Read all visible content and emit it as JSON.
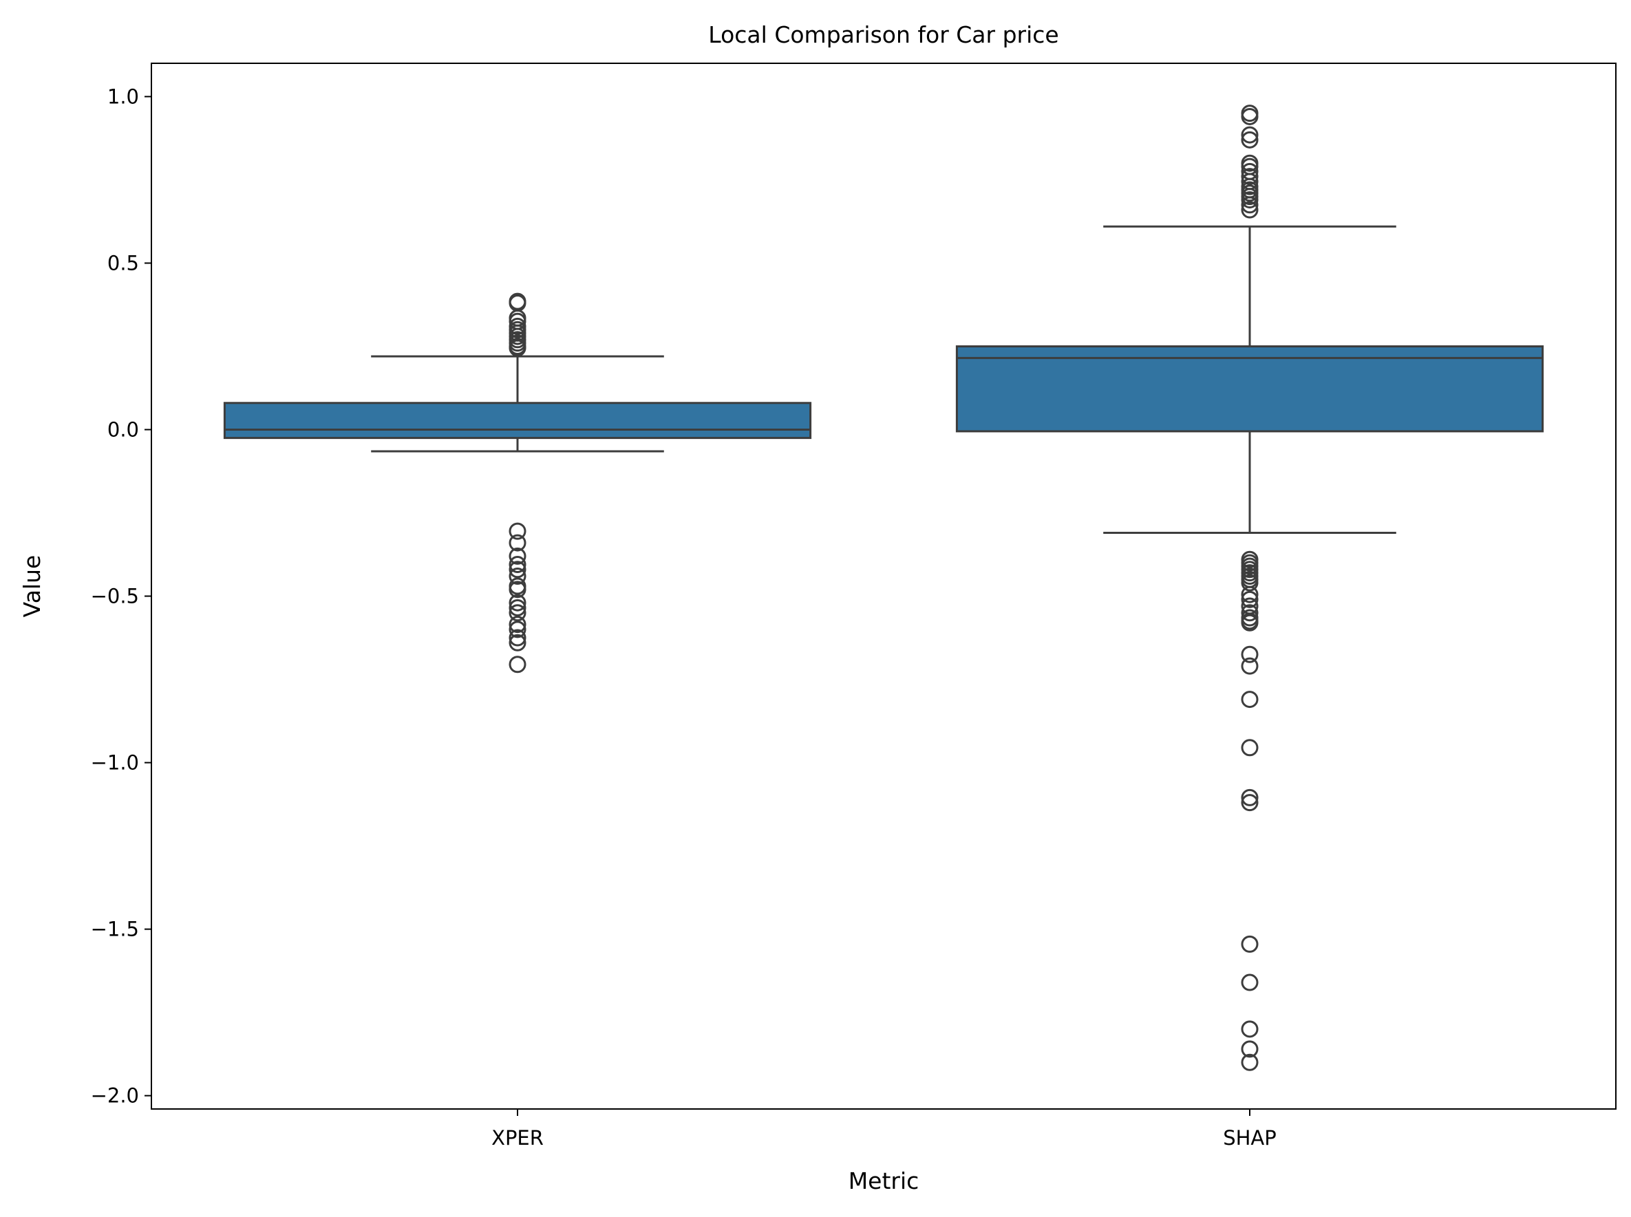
{
  "chart_data": {
    "type": "box",
    "title": "Local Comparison for Car price",
    "xlabel": "Metric",
    "ylabel": "Value",
    "categories": [
      "XPER",
      "SHAP"
    ],
    "ylim": [
      -2.04,
      1.1
    ],
    "yticks": [
      1.0,
      0.5,
      0.0,
      -0.5,
      -1.0,
      -1.5,
      -2.0
    ],
    "ytick_labels": [
      "1.0",
      "0.5",
      "0.0",
      "−0.5",
      "−1.0",
      "−1.5",
      "−2.0"
    ],
    "grid": false,
    "box_color": "#3274a1",
    "line_color": "#3d3d3d",
    "boxes": [
      {
        "category": "XPER",
        "whisker_low": -0.065,
        "q1": -0.025,
        "median": 0.0,
        "q3": 0.08,
        "whisker_high": 0.22,
        "fliers": [
          0.385,
          0.38,
          0.335,
          0.325,
          0.31,
          0.3,
          0.29,
          0.28,
          0.27,
          0.26,
          0.25,
          0.245,
          -0.305,
          -0.34,
          -0.38,
          -0.405,
          -0.42,
          -0.44,
          -0.47,
          -0.48,
          -0.52,
          -0.535,
          -0.55,
          -0.585,
          -0.6,
          -0.625,
          -0.64,
          -0.705
        ]
      },
      {
        "category": "SHAP",
        "whisker_low": -0.31,
        "q1": -0.005,
        "median": 0.215,
        "q3": 0.25,
        "whisker_high": 0.61,
        "fliers": [
          0.95,
          0.94,
          0.885,
          0.87,
          0.8,
          0.79,
          0.775,
          0.76,
          0.745,
          0.73,
          0.72,
          0.71,
          0.7,
          0.69,
          0.675,
          0.66,
          -0.39,
          -0.4,
          -0.41,
          -0.42,
          -0.43,
          -0.44,
          -0.45,
          -0.46,
          -0.495,
          -0.51,
          -0.53,
          -0.55,
          -0.565,
          -0.575,
          -0.58,
          -0.675,
          -0.71,
          -0.81,
          -0.955,
          -1.105,
          -1.12,
          -1.545,
          -1.66,
          -1.8,
          -1.86,
          -1.9
        ]
      }
    ]
  }
}
